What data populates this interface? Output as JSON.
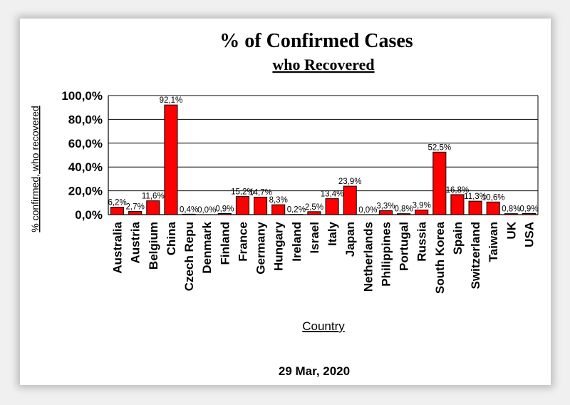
{
  "chart_data": {
    "type": "bar",
    "title": "% of Confirmed Cases",
    "subtitle": "who Recovered",
    "xlabel": "Country",
    "ylabel": "% confirmed, who recovered",
    "footer": "29 Mar, 2020",
    "ylim": [
      0,
      100
    ],
    "yticks": [
      "0,0%",
      "20,0%",
      "40,0%",
      "60,0%",
      "80,0%",
      "100,0%"
    ],
    "grid": true,
    "bar_color": "#ff0000",
    "categories": [
      "Australia",
      "Austria",
      "Belgium",
      "China",
      "Czech Repu",
      "Denmark",
      "Finland",
      "France",
      "Germany",
      "Hungary",
      "Ireland",
      "Israel",
      "Italy",
      "Japan",
      "Netherlands",
      "Philippines",
      "Portugal",
      "Russia",
      "South Korea",
      "Spain",
      "Switzerland",
      "Taiwan",
      "UK",
      "USA"
    ],
    "values": [
      6.2,
      2.7,
      11.6,
      92.1,
      0.4,
      0.0,
      0.9,
      15.2,
      14.7,
      8.3,
      0.2,
      2.5,
      13.4,
      23.9,
      0.0,
      3.3,
      0.8,
      3.9,
      52.5,
      16.8,
      11.3,
      10.6,
      0.8,
      0.9
    ],
    "labels": [
      "6,2%",
      "2,7%",
      "11,6%",
      "92,1%",
      "0,4%",
      "0,0%",
      "0,9%",
      "15,2%",
      "14,7%",
      "8,3%",
      "0,2%",
      "2,5%",
      "13,4%",
      "23,9%",
      "0,0%",
      "3,3%",
      "0,8%",
      "3,9%",
      "52,5%",
      "16,8%",
      "11,3%",
      "10,6%",
      "0,8%",
      "0,9%"
    ]
  }
}
